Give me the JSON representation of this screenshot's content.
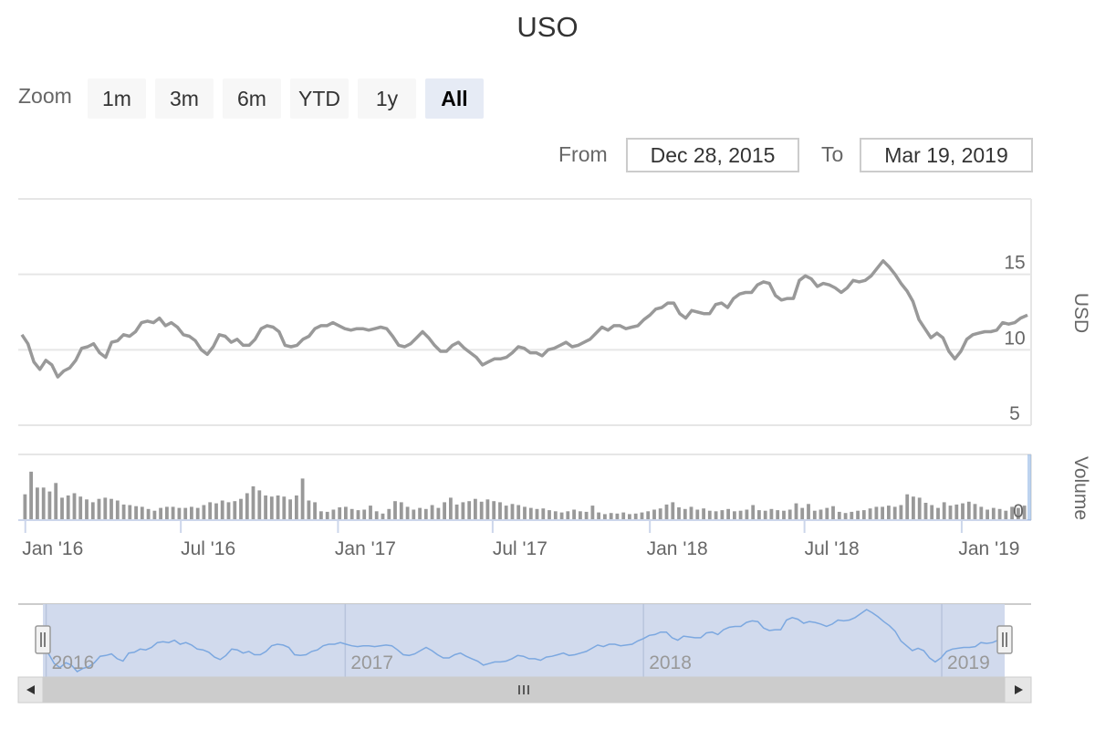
{
  "title": "USO",
  "range_selector": {
    "zoom_label": "Zoom",
    "buttons": [
      "1m",
      "3m",
      "6m",
      "YTD",
      "1y",
      "All"
    ],
    "active": "All",
    "from_label": "From",
    "from_value": "Dec 28, 2015",
    "to_label": "To",
    "to_value": "Mar 19, 2019"
  },
  "navigator": {
    "labels": [
      "2016",
      "2017",
      "2018",
      "2019"
    ]
  },
  "colors": {
    "price_line": "#999999",
    "volume_bar": "#999999",
    "navigator_fill": "#ccd6eb",
    "navigator_line": "#7ca8e0",
    "grid": "#e6e6e6"
  },
  "chart_data": [
    {
      "type": "line",
      "name": "price",
      "ylabel": "USD",
      "y_ticks": [
        5,
        10,
        15
      ],
      "ylim": [
        5,
        20
      ],
      "x_tick_labels": [
        "Jan '16",
        "Jul '16",
        "Jan '17",
        "Jul '17",
        "Jan '18",
        "Jul '18",
        "Jan '19"
      ],
      "x_tick_dates": [
        "2016-01-01",
        "2016-07-01",
        "2017-01-01",
        "2017-07-01",
        "2018-01-01",
        "2018-07-01",
        "2019-01-01"
      ],
      "xlim": [
        "2015-12-28",
        "2019-03-19"
      ],
      "points": [
        [
          "2015-12-28",
          11.0
        ],
        [
          "2016-01-04",
          10.4
        ],
        [
          "2016-01-11",
          9.2
        ],
        [
          "2016-01-18",
          8.7
        ],
        [
          "2016-01-25",
          9.3
        ],
        [
          "2016-02-01",
          9.0
        ],
        [
          "2016-02-08",
          8.2
        ],
        [
          "2016-02-15",
          8.6
        ],
        [
          "2016-02-22",
          8.8
        ],
        [
          "2016-02-29",
          9.3
        ],
        [
          "2016-03-07",
          10.1
        ],
        [
          "2016-03-14",
          10.2
        ],
        [
          "2016-03-21",
          10.4
        ],
        [
          "2016-03-28",
          9.8
        ],
        [
          "2016-04-04",
          9.5
        ],
        [
          "2016-04-11",
          10.5
        ],
        [
          "2016-04-18",
          10.6
        ],
        [
          "2016-04-25",
          11.0
        ],
        [
          "2016-05-02",
          10.9
        ],
        [
          "2016-05-09",
          11.2
        ],
        [
          "2016-05-16",
          11.8
        ],
        [
          "2016-05-23",
          11.9
        ],
        [
          "2016-05-30",
          11.8
        ],
        [
          "2016-06-06",
          12.1
        ],
        [
          "2016-06-13",
          11.6
        ],
        [
          "2016-06-20",
          11.8
        ],
        [
          "2016-06-27",
          11.5
        ],
        [
          "2016-07-04",
          11.0
        ],
        [
          "2016-07-11",
          10.9
        ],
        [
          "2016-07-18",
          10.6
        ],
        [
          "2016-07-25",
          10.0
        ],
        [
          "2016-08-01",
          9.7
        ],
        [
          "2016-08-08",
          10.2
        ],
        [
          "2016-08-15",
          11.0
        ],
        [
          "2016-08-22",
          10.9
        ],
        [
          "2016-08-29",
          10.5
        ],
        [
          "2016-09-05",
          10.7
        ],
        [
          "2016-09-12",
          10.3
        ],
        [
          "2016-09-19",
          10.3
        ],
        [
          "2016-09-26",
          10.7
        ],
        [
          "2016-10-03",
          11.4
        ],
        [
          "2016-10-10",
          11.6
        ],
        [
          "2016-10-17",
          11.5
        ],
        [
          "2016-10-24",
          11.2
        ],
        [
          "2016-10-31",
          10.3
        ],
        [
          "2016-11-07",
          10.2
        ],
        [
          "2016-11-14",
          10.3
        ],
        [
          "2016-11-21",
          10.7
        ],
        [
          "2016-11-28",
          10.9
        ],
        [
          "2016-12-05",
          11.4
        ],
        [
          "2016-12-12",
          11.6
        ],
        [
          "2016-12-19",
          11.6
        ],
        [
          "2016-12-26",
          11.8
        ],
        [
          "2017-01-02",
          11.6
        ],
        [
          "2017-01-09",
          11.4
        ],
        [
          "2017-01-16",
          11.3
        ],
        [
          "2017-01-23",
          11.4
        ],
        [
          "2017-01-30",
          11.4
        ],
        [
          "2017-02-06",
          11.3
        ],
        [
          "2017-02-13",
          11.4
        ],
        [
          "2017-02-20",
          11.5
        ],
        [
          "2017-02-27",
          11.4
        ],
        [
          "2017-03-06",
          10.9
        ],
        [
          "2017-03-13",
          10.3
        ],
        [
          "2017-03-20",
          10.2
        ],
        [
          "2017-03-27",
          10.4
        ],
        [
          "2017-04-03",
          10.8
        ],
        [
          "2017-04-10",
          11.2
        ],
        [
          "2017-04-17",
          10.8
        ],
        [
          "2017-04-24",
          10.3
        ],
        [
          "2017-05-01",
          9.9
        ],
        [
          "2017-05-08",
          9.9
        ],
        [
          "2017-05-15",
          10.3
        ],
        [
          "2017-05-22",
          10.5
        ],
        [
          "2017-05-29",
          10.1
        ],
        [
          "2017-06-05",
          9.8
        ],
        [
          "2017-06-12",
          9.5
        ],
        [
          "2017-06-19",
          9.0
        ],
        [
          "2017-06-26",
          9.2
        ],
        [
          "2017-07-03",
          9.4
        ],
        [
          "2017-07-10",
          9.4
        ],
        [
          "2017-07-17",
          9.5
        ],
        [
          "2017-07-24",
          9.8
        ],
        [
          "2017-07-31",
          10.2
        ],
        [
          "2017-08-07",
          10.1
        ],
        [
          "2017-08-14",
          9.8
        ],
        [
          "2017-08-21",
          9.8
        ],
        [
          "2017-08-28",
          9.6
        ],
        [
          "2017-09-04",
          10.0
        ],
        [
          "2017-09-11",
          10.1
        ],
        [
          "2017-09-18",
          10.3
        ],
        [
          "2017-09-25",
          10.5
        ],
        [
          "2017-10-02",
          10.2
        ],
        [
          "2017-10-09",
          10.3
        ],
        [
          "2017-10-16",
          10.5
        ],
        [
          "2017-10-23",
          10.7
        ],
        [
          "2017-10-30",
          11.1
        ],
        [
          "2017-11-06",
          11.5
        ],
        [
          "2017-11-13",
          11.3
        ],
        [
          "2017-11-20",
          11.6
        ],
        [
          "2017-11-27",
          11.6
        ],
        [
          "2017-12-04",
          11.4
        ],
        [
          "2017-12-11",
          11.5
        ],
        [
          "2017-12-18",
          11.6
        ],
        [
          "2017-12-25",
          12.0
        ],
        [
          "2018-01-01",
          12.3
        ],
        [
          "2018-01-08",
          12.7
        ],
        [
          "2018-01-15",
          12.8
        ],
        [
          "2018-01-22",
          13.1
        ],
        [
          "2018-01-29",
          13.1
        ],
        [
          "2018-02-05",
          12.4
        ],
        [
          "2018-02-12",
          12.1
        ],
        [
          "2018-02-19",
          12.6
        ],
        [
          "2018-02-26",
          12.5
        ],
        [
          "2018-03-05",
          12.4
        ],
        [
          "2018-03-12",
          12.4
        ],
        [
          "2018-03-19",
          13.0
        ],
        [
          "2018-03-26",
          13.1
        ],
        [
          "2018-04-02",
          12.8
        ],
        [
          "2018-04-09",
          13.4
        ],
        [
          "2018-04-16",
          13.7
        ],
        [
          "2018-04-23",
          13.8
        ],
        [
          "2018-04-30",
          13.8
        ],
        [
          "2018-05-07",
          14.3
        ],
        [
          "2018-05-14",
          14.5
        ],
        [
          "2018-05-21",
          14.4
        ],
        [
          "2018-05-28",
          13.6
        ],
        [
          "2018-06-04",
          13.3
        ],
        [
          "2018-06-11",
          13.4
        ],
        [
          "2018-06-18",
          13.4
        ],
        [
          "2018-06-25",
          14.6
        ],
        [
          "2018-07-02",
          14.9
        ],
        [
          "2018-07-09",
          14.7
        ],
        [
          "2018-07-16",
          14.2
        ],
        [
          "2018-07-23",
          14.4
        ],
        [
          "2018-07-30",
          14.3
        ],
        [
          "2018-08-06",
          14.1
        ],
        [
          "2018-08-13",
          13.8
        ],
        [
          "2018-08-20",
          14.1
        ],
        [
          "2018-08-27",
          14.6
        ],
        [
          "2018-09-03",
          14.5
        ],
        [
          "2018-09-10",
          14.6
        ],
        [
          "2018-09-17",
          14.9
        ],
        [
          "2018-09-24",
          15.4
        ],
        [
          "2018-10-01",
          15.9
        ],
        [
          "2018-10-08",
          15.5
        ],
        [
          "2018-10-15",
          15.0
        ],
        [
          "2018-10-22",
          14.4
        ],
        [
          "2018-10-29",
          13.9
        ],
        [
          "2018-11-05",
          13.2
        ],
        [
          "2018-11-12",
          12.0
        ],
        [
          "2018-11-19",
          11.4
        ],
        [
          "2018-11-26",
          10.8
        ],
        [
          "2018-12-03",
          11.1
        ],
        [
          "2018-12-10",
          10.8
        ],
        [
          "2018-12-17",
          9.9
        ],
        [
          "2018-12-24",
          9.4
        ],
        [
          "2018-12-31",
          9.9
        ],
        [
          "2019-01-07",
          10.7
        ],
        [
          "2019-01-14",
          11.0
        ],
        [
          "2019-01-21",
          11.1
        ],
        [
          "2019-01-28",
          11.2
        ],
        [
          "2019-02-04",
          11.2
        ],
        [
          "2019-02-11",
          11.3
        ],
        [
          "2019-02-18",
          11.8
        ],
        [
          "2019-02-25",
          11.7
        ],
        [
          "2019-03-04",
          11.8
        ],
        [
          "2019-03-11",
          12.1
        ],
        [
          "2019-03-19",
          12.3
        ]
      ]
    },
    {
      "type": "bar",
      "name": "volume",
      "ylabel": "Volume",
      "y_ticks": [
        0
      ],
      "values_relative": [
        0.44,
        0.84,
        0.56,
        0.56,
        0.49,
        0.64,
        0.38,
        0.42,
        0.46,
        0.4,
        0.35,
        0.3,
        0.36,
        0.38,
        0.36,
        0.33,
        0.26,
        0.25,
        0.23,
        0.22,
        0.18,
        0.15,
        0.2,
        0.22,
        0.22,
        0.2,
        0.2,
        0.22,
        0.2,
        0.25,
        0.3,
        0.28,
        0.33,
        0.3,
        0.32,
        0.36,
        0.46,
        0.58,
        0.51,
        0.42,
        0.4,
        0.42,
        0.4,
        0.35,
        0.42,
        0.72,
        0.33,
        0.3,
        0.14,
        0.13,
        0.17,
        0.21,
        0.22,
        0.18,
        0.16,
        0.17,
        0.24,
        0.14,
        0.1,
        0.18,
        0.32,
        0.3,
        0.22,
        0.17,
        0.2,
        0.18,
        0.25,
        0.2,
        0.3,
        0.38,
        0.26,
        0.3,
        0.32,
        0.36,
        0.31,
        0.35,
        0.32,
        0.3,
        0.24,
        0.27,
        0.25,
        0.22,
        0.2,
        0.18,
        0.19,
        0.16,
        0.14,
        0.12,
        0.14,
        0.17,
        0.14,
        0.13,
        0.24,
        0.12,
        0.09,
        0.11,
        0.1,
        0.12,
        0.09,
        0.1,
        0.12,
        0.14,
        0.17,
        0.19,
        0.26,
        0.3,
        0.21,
        0.18,
        0.22,
        0.17,
        0.19,
        0.15,
        0.14,
        0.16,
        0.18,
        0.14,
        0.15,
        0.17,
        0.25,
        0.16,
        0.15,
        0.18,
        0.16,
        0.15,
        0.17,
        0.28,
        0.2,
        0.27,
        0.15,
        0.17,
        0.2,
        0.23,
        0.13,
        0.11,
        0.13,
        0.15,
        0.16,
        0.19,
        0.22,
        0.22,
        0.24,
        0.22,
        0.25,
        0.44,
        0.4,
        0.38,
        0.29,
        0.25,
        0.2,
        0.3,
        0.24,
        0.26,
        0.28,
        0.31,
        0.27,
        0.22,
        0.17,
        0.2,
        0.18,
        0.15,
        0.22,
        0.2,
        0.24
      ]
    }
  ]
}
